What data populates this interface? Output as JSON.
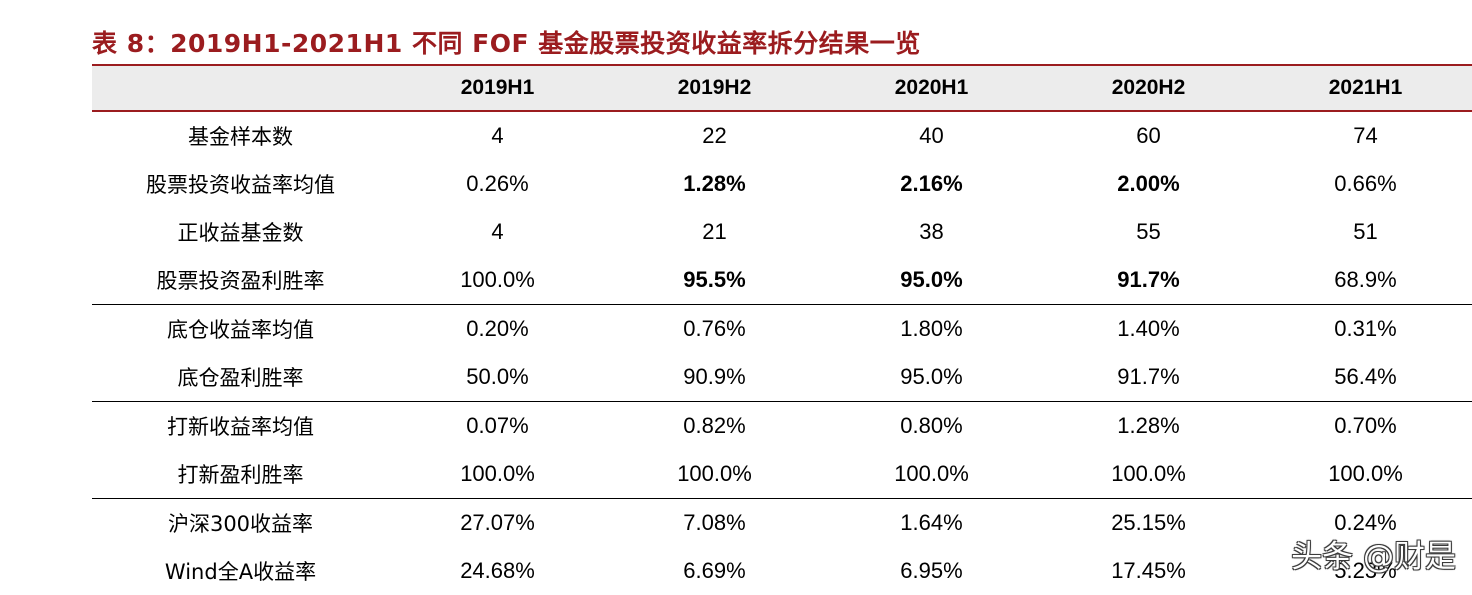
{
  "title": "表 8：2019H1-2021H1 不同 FOF 基金股票投资收益率拆分结果一览",
  "columns": [
    "2019H1",
    "2019H2",
    "2020H1",
    "2020H2",
    "2021H1"
  ],
  "rows": [
    {
      "label": "基金样本数",
      "values": [
        "4",
        "22",
        "40",
        "60",
        "74"
      ],
      "bold": [
        false,
        false,
        false,
        false,
        false
      ]
    },
    {
      "label": "股票投资收益率均值",
      "values": [
        "0.26%",
        "1.28%",
        "2.16%",
        "2.00%",
        "0.66%"
      ],
      "bold": [
        false,
        true,
        true,
        true,
        false
      ]
    },
    {
      "label": "正收益基金数",
      "values": [
        "4",
        "21",
        "38",
        "55",
        "51"
      ],
      "bold": [
        false,
        false,
        false,
        false,
        false
      ]
    },
    {
      "label": "股票投资盈利胜率",
      "values": [
        "100.0%",
        "95.5%",
        "95.0%",
        "91.7%",
        "68.9%"
      ],
      "bold": [
        false,
        true,
        true,
        true,
        false
      ]
    },
    {
      "label": "底仓收益率均值",
      "values": [
        "0.20%",
        "0.76%",
        "1.80%",
        "1.40%",
        "0.31%"
      ],
      "bold": [
        false,
        false,
        false,
        false,
        false
      ]
    },
    {
      "label": "底仓盈利胜率",
      "values": [
        "50.0%",
        "90.9%",
        "95.0%",
        "91.7%",
        "56.4%"
      ],
      "bold": [
        false,
        false,
        false,
        false,
        false
      ]
    },
    {
      "label": "打新收益率均值",
      "values": [
        "0.07%",
        "0.82%",
        "0.80%",
        "1.28%",
        "0.70%"
      ],
      "bold": [
        false,
        false,
        false,
        false,
        false
      ]
    },
    {
      "label": "打新盈利胜率",
      "values": [
        "100.0%",
        "100.0%",
        "100.0%",
        "100.0%",
        "100.0%"
      ],
      "bold": [
        false,
        false,
        false,
        false,
        false
      ]
    },
    {
      "label": "沪深300收益率",
      "values": [
        "27.07%",
        "7.08%",
        "1.64%",
        "25.15%",
        "0.24%"
      ],
      "bold": [
        false,
        false,
        false,
        false,
        false
      ]
    },
    {
      "label": "Wind全A收益率",
      "values": [
        "24.68%",
        "6.69%",
        "6.95%",
        "17.45%",
        "5.23%"
      ],
      "bold": [
        false,
        false,
        false,
        false,
        false
      ]
    }
  ],
  "watermark": "头条 @财是",
  "colors": {
    "accent": "#9b1c1f",
    "header_bg": "#ececec"
  }
}
